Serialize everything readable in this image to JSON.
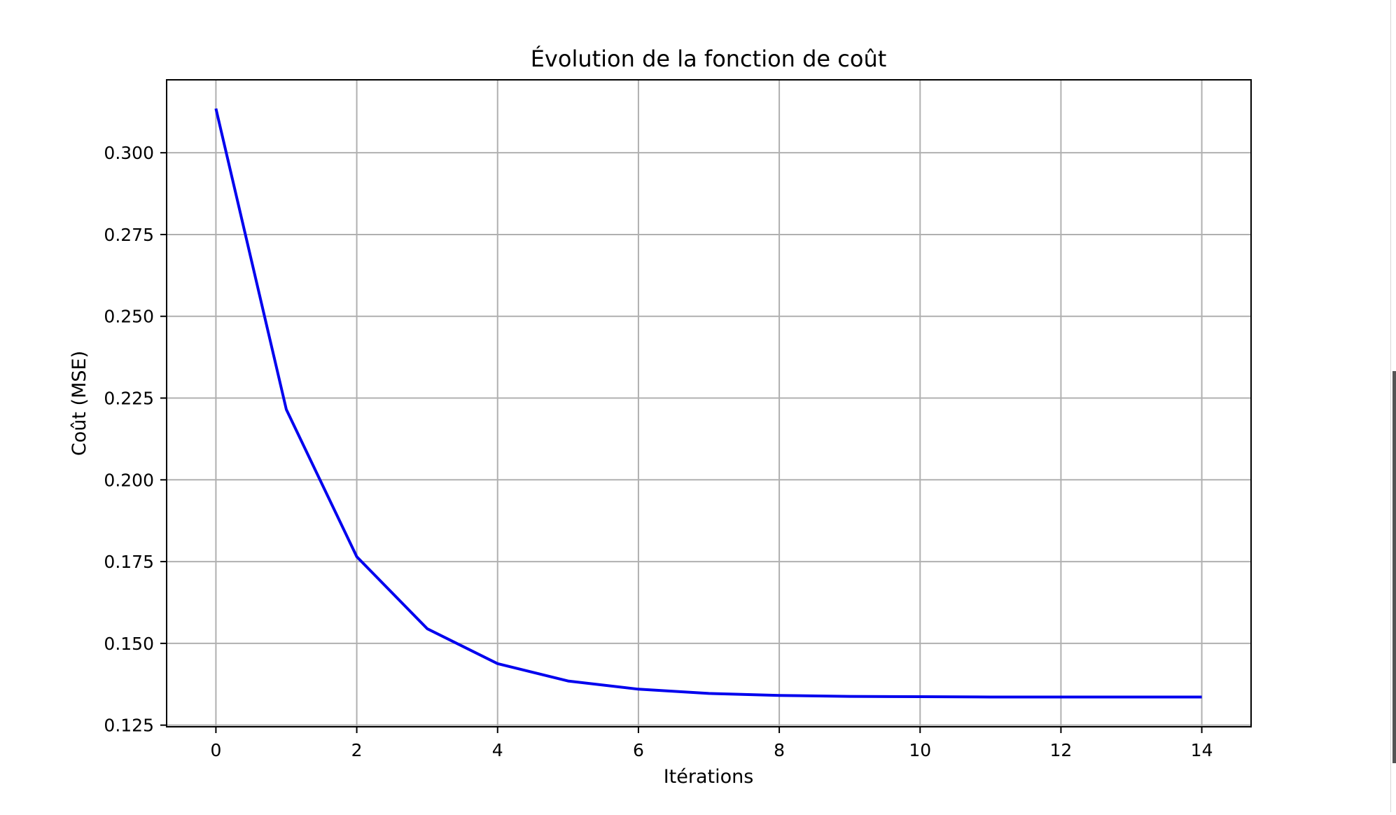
{
  "chart_data": {
    "type": "line",
    "title": "Évolution de la fonction de coût",
    "xlabel": "Itérations",
    "ylabel": "Coût (MSE)",
    "xlim": [
      -0.7,
      14.7
    ],
    "ylim": [
      0.1245,
      0.3223
    ],
    "xticks": [
      0,
      2,
      4,
      6,
      8,
      10,
      12,
      14
    ],
    "xtick_labels": [
      "0",
      "2",
      "4",
      "6",
      "8",
      "10",
      "12",
      "14"
    ],
    "yticks": [
      0.125,
      0.15,
      0.175,
      0.2,
      0.225,
      0.25,
      0.275,
      0.3
    ],
    "ytick_labels": [
      "0.125",
      "0.150",
      "0.175",
      "0.200",
      "0.225",
      "0.250",
      "0.275",
      "0.300"
    ],
    "grid": true,
    "series": [
      {
        "color": "#0000ee",
        "x": [
          0,
          1,
          2,
          3,
          4,
          5,
          6,
          7,
          8,
          9,
          10,
          11,
          12,
          13,
          14
        ],
        "y": [
          0.3135,
          0.2215,
          0.1765,
          0.1545,
          0.1438,
          0.1385,
          0.136,
          0.1347,
          0.1341,
          0.1338,
          0.1337,
          0.1336,
          0.1336,
          0.1336,
          0.1336
        ]
      }
    ]
  }
}
